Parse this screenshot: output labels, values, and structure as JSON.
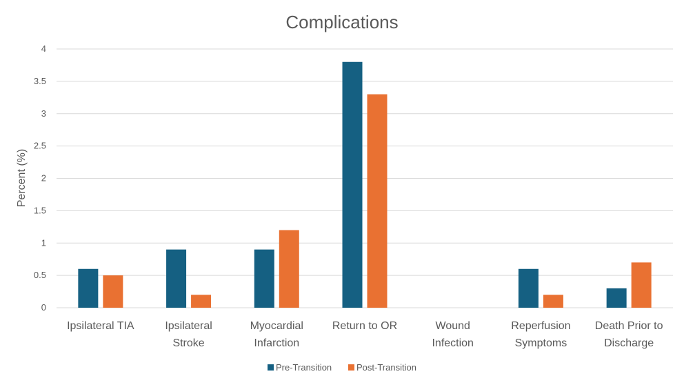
{
  "chart_data": {
    "type": "bar",
    "title": "Complications",
    "xlabel": "",
    "ylabel": "Percent (%)",
    "ylim": [
      0,
      4
    ],
    "yticks": [
      "0",
      "0.5",
      "1",
      "1.5",
      "2",
      "2.5",
      "3",
      "3.5",
      "4"
    ],
    "grid": true,
    "legend": "bottom",
    "categories": [
      [
        "Ipsilateral TIA"
      ],
      [
        "Ipsilateral",
        "Stroke"
      ],
      [
        "Myocardial",
        "Infarction"
      ],
      [
        "Return to OR"
      ],
      [
        "Wound",
        "Infection"
      ],
      [
        "Reperfusion",
        "Symptoms"
      ],
      [
        "Death Prior to",
        "Discharge"
      ]
    ],
    "series": [
      {
        "name": "Pre-Transition",
        "color": "#156082",
        "values": [
          0.6,
          0.9,
          0.9,
          3.8,
          0,
          0.6,
          0.3
        ]
      },
      {
        "name": "Post-Transition",
        "color": "#e97132",
        "values": [
          0.5,
          0.2,
          1.2,
          3.3,
          0,
          0.2,
          0.7
        ]
      }
    ]
  }
}
